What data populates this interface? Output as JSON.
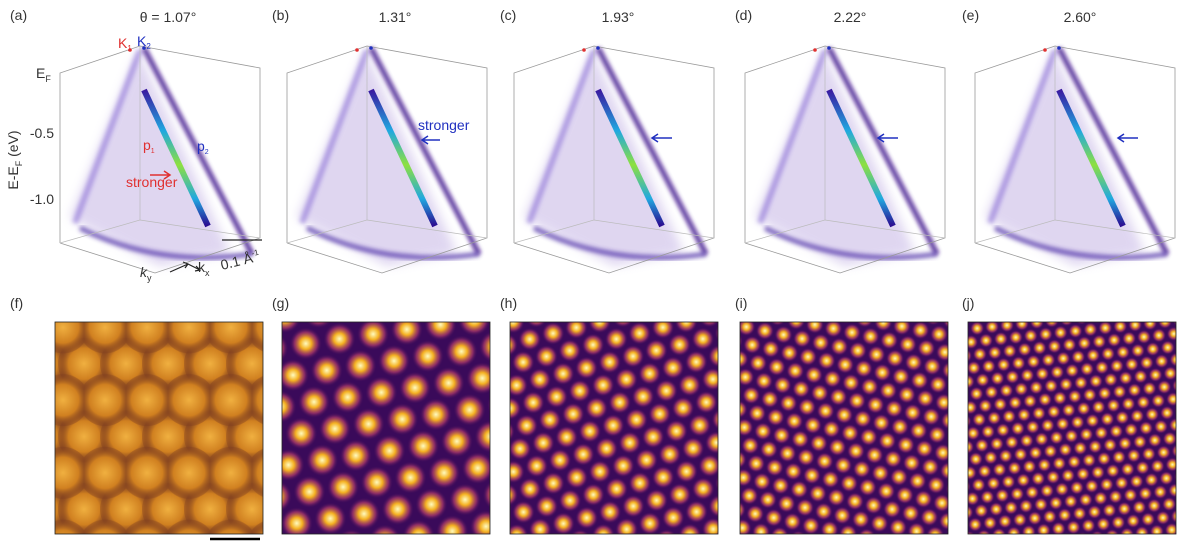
{
  "panels": [
    {
      "label": "(a)",
      "angle": "θ = 1.07°"
    },
    {
      "label": "(b)",
      "angle": "1.31°"
    },
    {
      "label": "(c)",
      "angle": "1.93°"
    },
    {
      "label": "(d)",
      "angle": "2.22°"
    },
    {
      "label": "(e)",
      "angle": "2.60°"
    },
    {
      "label": "(f)"
    },
    {
      "label": "(g)"
    },
    {
      "label": "(h)"
    },
    {
      "label": "(i)"
    },
    {
      "label": "(j)"
    }
  ],
  "axis": {
    "title_main": "E-E",
    "title_sub": "F",
    "title_unit": " (eV)",
    "ticks": [
      {
        "main": "E",
        "sub": "F"
      },
      {
        "main": "-0.5"
      },
      {
        "main": "-1.0"
      }
    ]
  },
  "annotations": {
    "k1": {
      "main": "K",
      "sub": "1"
    },
    "k2": {
      "main": "K",
      "sub": "2"
    },
    "p1": {
      "main": "p",
      "sub": "1"
    },
    "p2": {
      "main": "p",
      "sub": "2"
    },
    "stronger_a": "stronger",
    "stronger_b": "stronger",
    "ky": {
      "main": "k",
      "sub": "y"
    },
    "kx": {
      "main": "k",
      "sub": "x"
    },
    "scale": {
      "main": "0.1 Å",
      "sup": "-1"
    }
  }
}
